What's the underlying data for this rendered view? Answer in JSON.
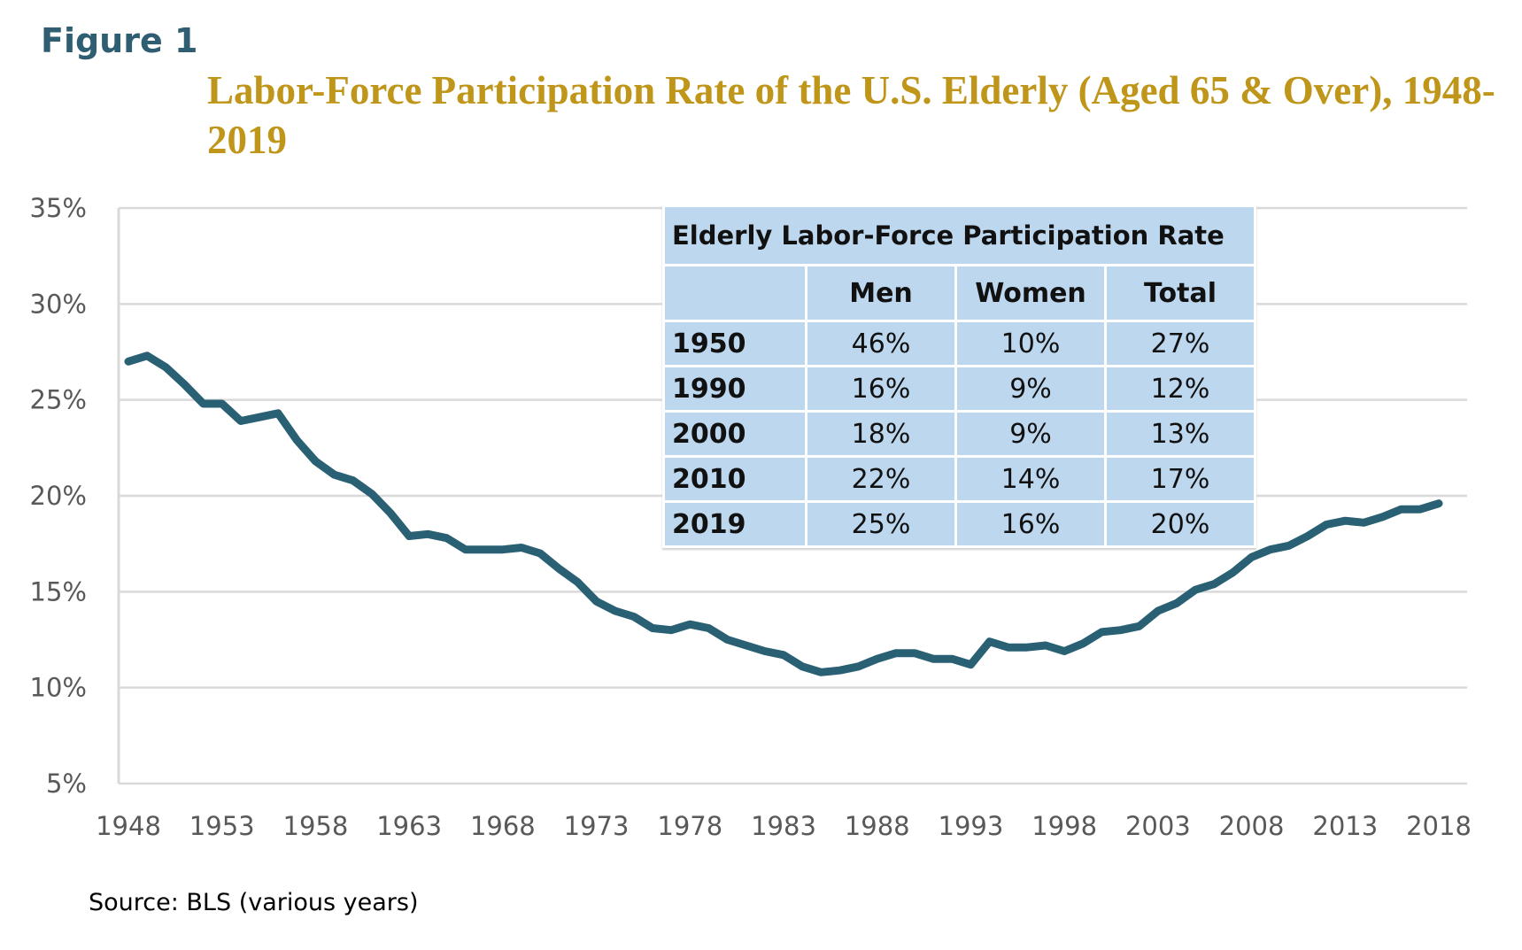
{
  "figure_label": "Figure 1",
  "source": "Source: BLS (various years)",
  "chart_data": {
    "type": "line",
    "title": "Labor-Force Participation Rate of the U.S. Elderly (Aged 65 & Over), 1948-2019",
    "xlabel": "",
    "ylabel": "",
    "xlim": [
      1948,
      2018
    ],
    "ylim": [
      5,
      35
    ],
    "grid": true,
    "line_color": "#2a6074",
    "y_ticks": [
      "35%",
      "30%",
      "25%",
      "20%",
      "15%",
      "10%",
      "5%"
    ],
    "y_tick_values": [
      35,
      30,
      25,
      20,
      15,
      10,
      5
    ],
    "x_ticks": [
      "1948",
      "1953",
      "1958",
      "1963",
      "1968",
      "1973",
      "1978",
      "1983",
      "1988",
      "1993",
      "1998",
      "2003",
      "2008",
      "2013",
      "2018"
    ],
    "series": [
      {
        "name": "Elderly labor-force participation rate (%)",
        "x": [
          1948,
          1949,
          1950,
          1951,
          1952,
          1953,
          1954,
          1955,
          1956,
          1957,
          1958,
          1959,
          1960,
          1961,
          1962,
          1963,
          1964,
          1965,
          1966,
          1967,
          1968,
          1969,
          1970,
          1971,
          1972,
          1973,
          1974,
          1975,
          1976,
          1977,
          1978,
          1979,
          1980,
          1981,
          1982,
          1983,
          1984,
          1985,
          1986,
          1987,
          1988,
          1989,
          1990,
          1991,
          1992,
          1993,
          1994,
          1995,
          1996,
          1997,
          1998,
          1999,
          2000,
          2001,
          2002,
          2003,
          2004,
          2005,
          2006,
          2007,
          2008,
          2009,
          2010,
          2011,
          2012,
          2013,
          2014,
          2015,
          2016,
          2017,
          2018
        ],
        "values": [
          27.0,
          27.3,
          26.7,
          25.8,
          24.8,
          24.8,
          23.9,
          24.1,
          24.3,
          22.9,
          21.8,
          21.1,
          20.8,
          20.1,
          19.1,
          17.9,
          18.0,
          17.8,
          17.2,
          17.2,
          17.2,
          17.3,
          17.0,
          16.2,
          15.5,
          14.5,
          14.0,
          13.7,
          13.1,
          13.0,
          13.3,
          13.1,
          12.5,
          12.2,
          11.9,
          11.7,
          11.1,
          10.8,
          10.9,
          11.1,
          11.5,
          11.8,
          11.8,
          11.5,
          11.5,
          11.2,
          12.4,
          12.1,
          12.1,
          12.2,
          11.9,
          12.3,
          12.9,
          13.0,
          13.2,
          14.0,
          14.4,
          15.1,
          15.4,
          16.0,
          16.8,
          17.2,
          17.4,
          17.9,
          18.5,
          18.7,
          18.6,
          18.9,
          19.3,
          19.3,
          19.6
        ]
      }
    ],
    "inset_table": {
      "title": "Elderly Labor-Force Participation Rate",
      "columns": [
        "",
        "Men",
        "Women",
        "Total"
      ],
      "rows": [
        [
          "1950",
          "46%",
          "10%",
          "27%"
        ],
        [
          "1990",
          "16%",
          "9%",
          "12%"
        ],
        [
          "2000",
          "18%",
          "9%",
          "13%"
        ],
        [
          "2010",
          "22%",
          "14%",
          "17%"
        ],
        [
          "2019",
          "25%",
          "16%",
          "20%"
        ]
      ]
    }
  }
}
